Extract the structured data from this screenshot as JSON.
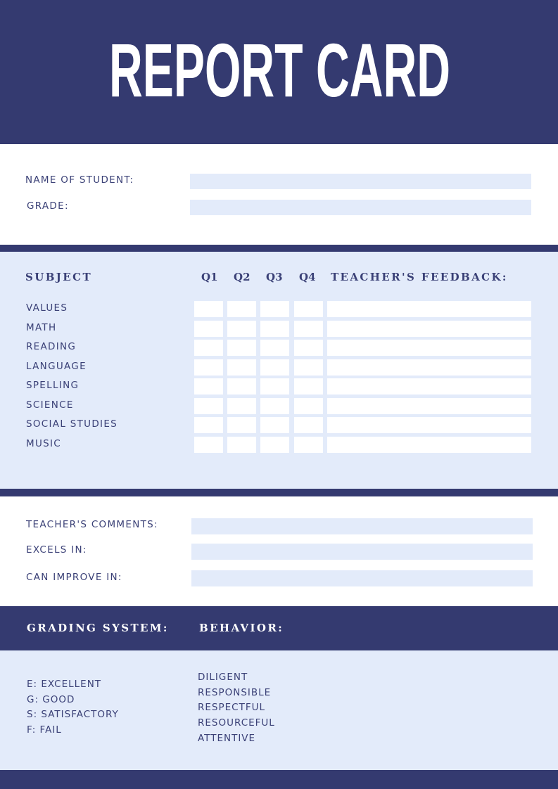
{
  "title": "REPORT CARD",
  "colors": {
    "navy": "#343a70",
    "light": "#e3ebfa",
    "text": "#3b4177"
  },
  "student_info": {
    "name_label": "NAME OF STUDENT:",
    "grade_label": "GRADE:",
    "name_value": "",
    "grade_value": ""
  },
  "subjects_table": {
    "headers": {
      "subject": "SUBJECT",
      "q1": "Q1",
      "q2": "Q2",
      "q3": "Q3",
      "q4": "Q4",
      "feedback": "TEACHER'S FEEDBACK:"
    },
    "rows": [
      "VALUES",
      "MATH",
      "READING",
      "LANGUAGE",
      "SPELLING",
      "SCIENCE",
      "SOCIAL STUDIES",
      "MUSIC"
    ]
  },
  "comments": {
    "teacher_comments_label": "TEACHER'S COMMENTS:",
    "excels_label": "EXCELS IN:",
    "improve_label": "CAN IMPROVE IN:"
  },
  "grading": {
    "title": "GRADING SYSTEM:",
    "items": [
      "E: EXCELLENT",
      "G: GOOD",
      "S: SATISFACTORY",
      "F: FAIL"
    ]
  },
  "behavior": {
    "title": "BEHAVIOR:",
    "items": [
      "DILIGENT",
      "RESPONSIBLE",
      "RESPECTFUL",
      "RESOURCEFUL",
      "ATTENTIVE"
    ]
  }
}
